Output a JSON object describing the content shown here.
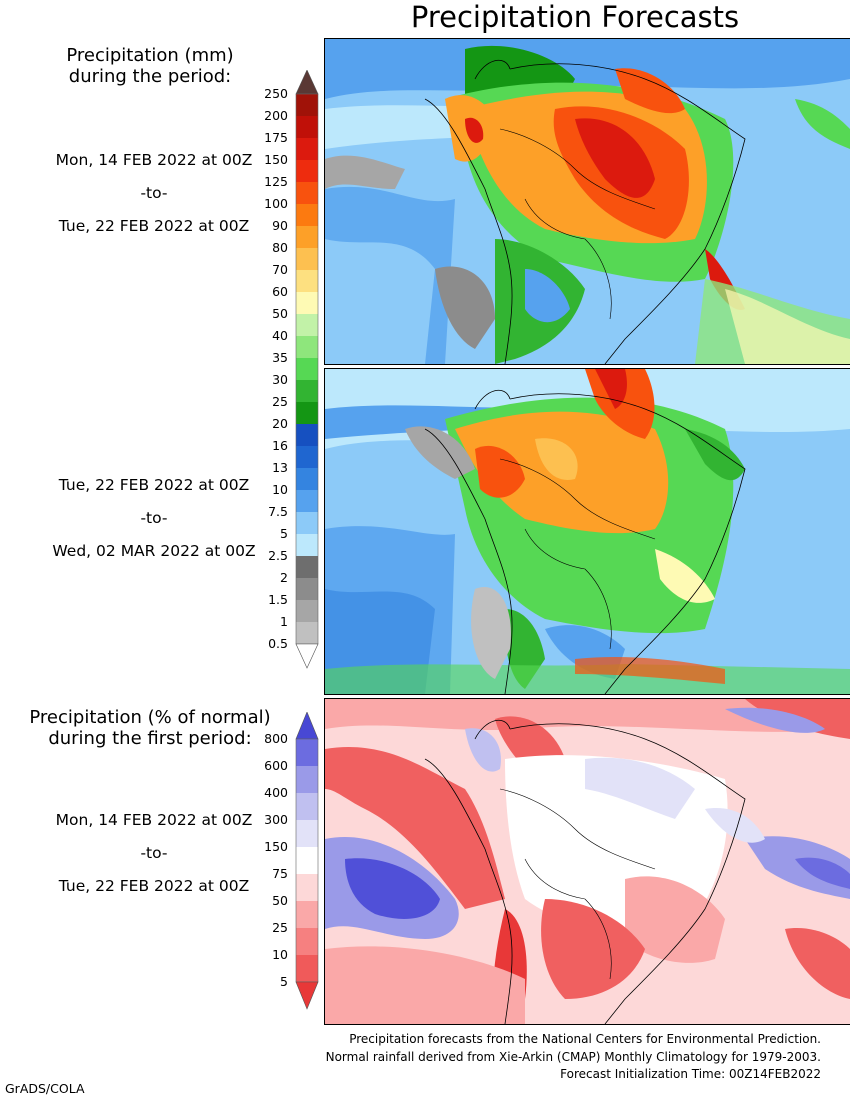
{
  "title": "Precipitation Forecasts",
  "precip_header": [
    "Precipitation (mm)",
    "during the period:"
  ],
  "period1": {
    "start": "Mon, 14 FEB 2022 at 00Z",
    "sep": "-to-",
    "end": "Tue, 22 FEB 2022 at 00Z"
  },
  "period2": {
    "start": "Tue, 22 FEB 2022 at 00Z",
    "sep": "-to-",
    "end": "Wed, 02 MAR 2022 at 00Z"
  },
  "anom_header": [
    "Precipitation (% of normal)",
    "during the first period:"
  ],
  "period3": {
    "start": "Mon, 14 FEB 2022 at 00Z",
    "sep": "-to-",
    "end": "Tue, 22 FEB 2022 at 00Z"
  },
  "precip_scale": {
    "labels": [
      "250",
      "200",
      "175",
      "150",
      "125",
      "100",
      "90",
      "80",
      "70",
      "60",
      "50",
      "40",
      "35",
      "30",
      "25",
      "20",
      "16",
      "13",
      "10",
      "7.5",
      "5",
      "2.5",
      "2",
      "1.5",
      "1",
      "0.5"
    ],
    "colors": [
      "#6e1a14",
      "#a01208",
      "#c01008",
      "#dc1a0e",
      "#ee2c0e",
      "#f8520e",
      "#fc7a10",
      "#fda028",
      "#fdc050",
      "#fde080",
      "#fefab4",
      "#c2f2a8",
      "#8ee67c",
      "#56d854",
      "#32b432",
      "#149614",
      "#1650c0",
      "#1f66d0",
      "#3484e0",
      "#56a2ee",
      "#8ccaf8",
      "#bce8fc",
      "#6e6e6e",
      "#8c8c8c",
      "#a6a6a6",
      "#c0c0c0",
      "#ffffff"
    ],
    "top_arrow_color": "#5a3834",
    "bottom_arrow_color": "#ffffff"
  },
  "anom_scale": {
    "labels": [
      "800",
      "600",
      "400",
      "300",
      "150",
      "75",
      "50",
      "25",
      "10",
      "5"
    ],
    "colors": [
      "#4848d4",
      "#6c6ce0",
      "#9a9ae8",
      "#c0c0f0",
      "#e2e2f8",
      "#ffffff",
      "#fdd8d8",
      "#faa8a8",
      "#f68080",
      "#f05a5a",
      "#e83838"
    ],
    "top_arrow_color": "#4848d4",
    "bottom_arrow_color": "#e83838"
  },
  "footer_lines": [
    "Precipitation forecasts from the National Centers for Environmental Prediction.",
    "Normal rainfall derived from Xie-Arkin (CMAP) Monthly Climatology for 1979-2003.",
    "Forecast Initialization Time: 00Z14FEB2022"
  ],
  "credit": "GrADS/COLA"
}
